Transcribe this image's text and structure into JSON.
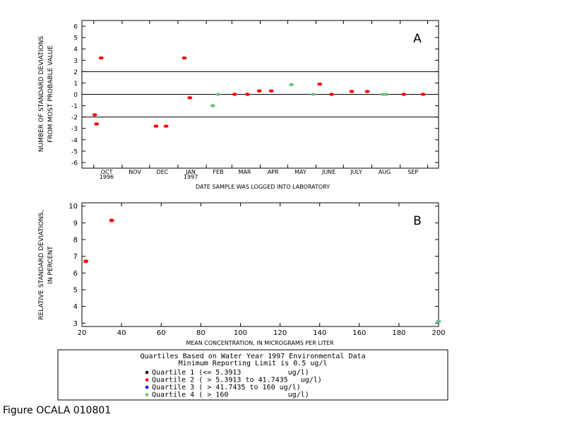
{
  "figure_caption": "Figure OCALA 010801",
  "colors": {
    "quartile1": "#000000",
    "quartile2": "#ff0000",
    "quartile3": "#0000ff",
    "quartile4": "#6fbf7f",
    "axis": "#000000"
  },
  "legend": {
    "title_line1": "Quartiles Based on Water Year 1997 Environmental Data",
    "title_line2": "Minimum Reporting Limit is 0.5 ug/l",
    "entries": [
      {
        "label": "Quartile 1 (<= 5.3913           ug/l)",
        "color_key": "quartile1"
      },
      {
        "label": "Quartile 2 ( > 5.3913 to 41.7435   ug/l)",
        "color_key": "quartile2"
      },
      {
        "label": "Quartile 3 ( > 41.7435 to 160 ug/l)",
        "color_key": "quartile3"
      },
      {
        "label": "Quartile 4 ( > 160              ug/l)",
        "color_key": "quartile4"
      }
    ]
  },
  "chart_data": [
    {
      "type": "scatter",
      "panel_label": "A",
      "xlabel": "DATE SAMPLE WAS LOGGED INTO LABORATORY",
      "ylabel_line1": "NUMBER OF STANDARD DEVIATIONS",
      "ylabel_line2": "FROM MOST PROBABLE VALUE",
      "ylim": [
        -6.5,
        6.5
      ],
      "yticks": [
        -6,
        -5,
        -4,
        -3,
        -2,
        -1,
        0,
        1,
        2,
        3,
        4,
        5,
        6
      ],
      "hlines": [
        2,
        0,
        -2
      ],
      "xlim": [
        "1996-09-18",
        "1997-10-13"
      ],
      "xtick_dates": [
        "1996-10-01",
        "1996-11-01",
        "1996-12-01",
        "1997-01-01",
        "1997-02-01",
        "1997-03-01",
        "1997-04-01",
        "1997-05-01",
        "1997-06-01",
        "1997-07-01",
        "1997-08-01",
        "1997-09-01",
        "1997-10-01"
      ],
      "month_labels": [
        {
          "text": "OCT",
          "date": "1996-10-15",
          "year": "1996"
        },
        {
          "text": "NOV",
          "date": "1996-11-15"
        },
        {
          "text": "DEC",
          "date": "1996-12-15"
        },
        {
          "text": "JAN",
          "date": "1997-01-15",
          "year": "1997"
        },
        {
          "text": "FEB",
          "date": "1997-02-14"
        },
        {
          "text": "MAR",
          "date": "1997-03-15"
        },
        {
          "text": "APR",
          "date": "1997-04-15"
        },
        {
          "text": "MAY",
          "date": "1997-05-15"
        },
        {
          "text": "JUNE",
          "date": "1997-06-15"
        },
        {
          "text": "JULY",
          "date": "1997-07-15"
        },
        {
          "text": "AUG",
          "date": "1997-08-15"
        },
        {
          "text": "SEP",
          "date": "1997-09-15"
        }
      ],
      "points": [
        {
          "x": "1996-10-02",
          "y": -1.8,
          "q": "quartile2"
        },
        {
          "x": "1996-10-04",
          "y": -2.6,
          "q": "quartile2"
        },
        {
          "x": "1996-10-09",
          "y": 3.2,
          "q": "quartile2"
        },
        {
          "x": "1996-12-08",
          "y": -2.8,
          "q": "quartile2"
        },
        {
          "x": "1996-12-19",
          "y": -2.8,
          "q": "quartile2"
        },
        {
          "x": "1997-01-08",
          "y": 3.2,
          "q": "quartile2"
        },
        {
          "x": "1997-01-14",
          "y": -0.3,
          "q": "quartile2"
        },
        {
          "x": "1997-02-08",
          "y": -1.0,
          "q": "quartile4"
        },
        {
          "x": "1997-02-14",
          "y": 0.0,
          "q": "quartile4"
        },
        {
          "x": "1997-03-04",
          "y": 0.0,
          "q": "quartile2"
        },
        {
          "x": "1997-03-18",
          "y": 0.0,
          "q": "quartile2"
        },
        {
          "x": "1997-03-31",
          "y": 0.3,
          "q": "quartile2"
        },
        {
          "x": "1997-04-13",
          "y": 0.3,
          "q": "quartile2"
        },
        {
          "x": "1997-05-05",
          "y": 0.85,
          "q": "quartile4"
        },
        {
          "x": "1997-05-29",
          "y": 0.0,
          "q": "quartile4"
        },
        {
          "x": "1997-06-05",
          "y": 0.9,
          "q": "quartile2"
        },
        {
          "x": "1997-06-18",
          "y": 0.0,
          "q": "quartile2"
        },
        {
          "x": "1997-07-10",
          "y": 0.25,
          "q": "quartile2"
        },
        {
          "x": "1997-07-27",
          "y": 0.25,
          "q": "quartile2"
        },
        {
          "x": "1997-08-13",
          "y": 0.0,
          "q": "quartile4"
        },
        {
          "x": "1997-08-17",
          "y": 0.0,
          "q": "quartile4"
        },
        {
          "x": "1997-09-05",
          "y": 0.0,
          "q": "quartile2"
        },
        {
          "x": "1997-09-26",
          "y": 0.0,
          "q": "quartile2"
        }
      ]
    },
    {
      "type": "scatter",
      "panel_label": "B",
      "xlabel": "MEAN CONCENTRATION, IN MICROGRAMS PER LITER",
      "ylabel_line1": "RELATIVE STANDARD DEVIATIONS,",
      "ylabel_line2": "IN PERCENT",
      "xlim": [
        20,
        200
      ],
      "ylim": [
        2.8,
        10.2
      ],
      "xticks": [
        20,
        40,
        60,
        80,
        100,
        120,
        140,
        160,
        180,
        200
      ],
      "yticks": [
        3,
        4,
        5,
        6,
        7,
        8,
        9,
        10
      ],
      "points": [
        {
          "x": 22,
          "y": 6.7,
          "q": "quartile2"
        },
        {
          "x": 35,
          "y": 9.15,
          "q": "quartile2"
        },
        {
          "x": 200,
          "y": 3.1,
          "q": "quartile4"
        }
      ]
    }
  ]
}
